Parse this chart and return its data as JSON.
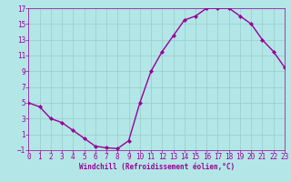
{
  "x": [
    0,
    1,
    2,
    3,
    4,
    5,
    6,
    7,
    8,
    9,
    10,
    11,
    12,
    13,
    14,
    15,
    16,
    17,
    18,
    19,
    20,
    21,
    22,
    23
  ],
  "y": [
    5,
    4.5,
    3,
    2.5,
    1.5,
    0.5,
    -0.5,
    -0.7,
    -0.8,
    0.2,
    5,
    9,
    11.5,
    13.5,
    15.5,
    16,
    17,
    17,
    17,
    16,
    15,
    13,
    11.5,
    9.5
  ],
  "line_color": "#990099",
  "marker": "D",
  "marker_size": 2.0,
  "xlabel": "Windchill (Refroidissement éolien,°C)",
  "xlim": [
    0,
    23
  ],
  "ylim": [
    -1,
    17
  ],
  "yticks": [
    -1,
    1,
    3,
    5,
    7,
    9,
    11,
    13,
    15,
    17
  ],
  "xticks": [
    0,
    1,
    2,
    3,
    4,
    5,
    6,
    7,
    8,
    9,
    10,
    11,
    12,
    13,
    14,
    15,
    16,
    17,
    18,
    19,
    20,
    21,
    22,
    23
  ],
  "bg_color": "#b3e6e6",
  "grid_color": "#99cccc",
  "font_color": "#990099",
  "tick_fontsize": 5.5,
  "xlabel_fontsize": 5.5,
  "linewidth": 1.0
}
